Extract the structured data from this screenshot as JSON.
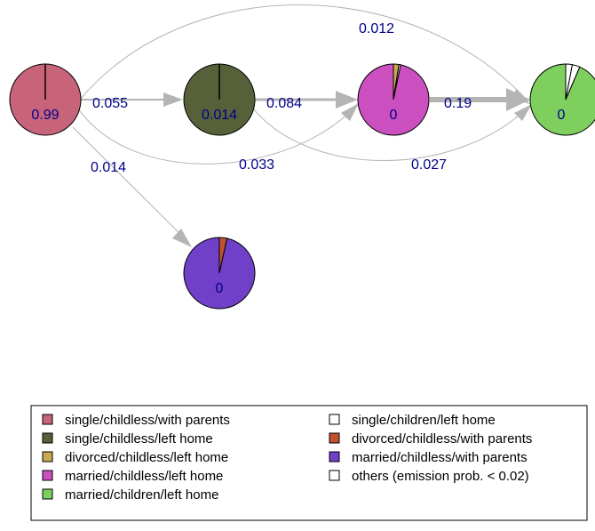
{
  "nodes": [
    {
      "id": "s1",
      "value": "0.99",
      "color": "#c8647a",
      "slices": [
        {
          "color": "#c8647a",
          "fraction": 1.0
        }
      ]
    },
    {
      "id": "s2",
      "value": "0.014",
      "color": "#56613a",
      "slices": [
        {
          "color": "#56613a",
          "fraction": 1.0
        }
      ]
    },
    {
      "id": "s3",
      "value": "0",
      "color": "#cc4fc0",
      "slices": [
        {
          "color": "#c9a94e",
          "fraction": 0.025
        },
        {
          "color": "#ffffff",
          "fraction": 0.008
        },
        {
          "color": "#cc4fc0",
          "fraction": 0.967
        }
      ]
    },
    {
      "id": "s4",
      "value": "0",
      "color": "#7ecf5e",
      "slices": [
        {
          "color": "#ffffff",
          "fraction": 0.03
        },
        {
          "color": "#ffffff",
          "fraction": 0.035
        },
        {
          "color": "#7ecf5e",
          "fraction": 0.935
        }
      ]
    },
    {
      "id": "s5",
      "value": "0",
      "color": "#7040c8",
      "slices": [
        {
          "color": "#c2522f",
          "fraction": 0.035
        },
        {
          "color": "#7040c8",
          "fraction": 0.965
        }
      ]
    }
  ],
  "transitions": [
    {
      "from": "s1",
      "to": "s2",
      "label": "0.055"
    },
    {
      "from": "s2",
      "to": "s3",
      "label": "0.084"
    },
    {
      "from": "s3",
      "to": "s4",
      "label": "0.19"
    },
    {
      "from": "s1",
      "to": "s4",
      "label": "0.012"
    },
    {
      "from": "s1",
      "to": "s3",
      "label": "0.033"
    },
    {
      "from": "s2",
      "to": "s4",
      "label": "0.027"
    },
    {
      "from": "s1",
      "to": "s5",
      "label": "0.014"
    }
  ],
  "legend": {
    "items": [
      {
        "label": "single/childless/with parents",
        "color": "#c8647a"
      },
      {
        "label": "single/childless/left home",
        "color": "#56613a"
      },
      {
        "label": "divorced/childless/left home",
        "color": "#c9a94e"
      },
      {
        "label": "married/childless/left home",
        "color": "#cc4fc0"
      },
      {
        "label": "married/children/left home",
        "color": "#7ecf5e"
      },
      {
        "label": "single/children/left home",
        "color": "#ffffff"
      },
      {
        "label": "divorced/childless/with parents",
        "color": "#c2522f"
      },
      {
        "label": "married/childless/with parents",
        "color": "#7040c8"
      },
      {
        "label": "others (emission prob. < 0.02)",
        "color": "#ffffff"
      }
    ]
  }
}
